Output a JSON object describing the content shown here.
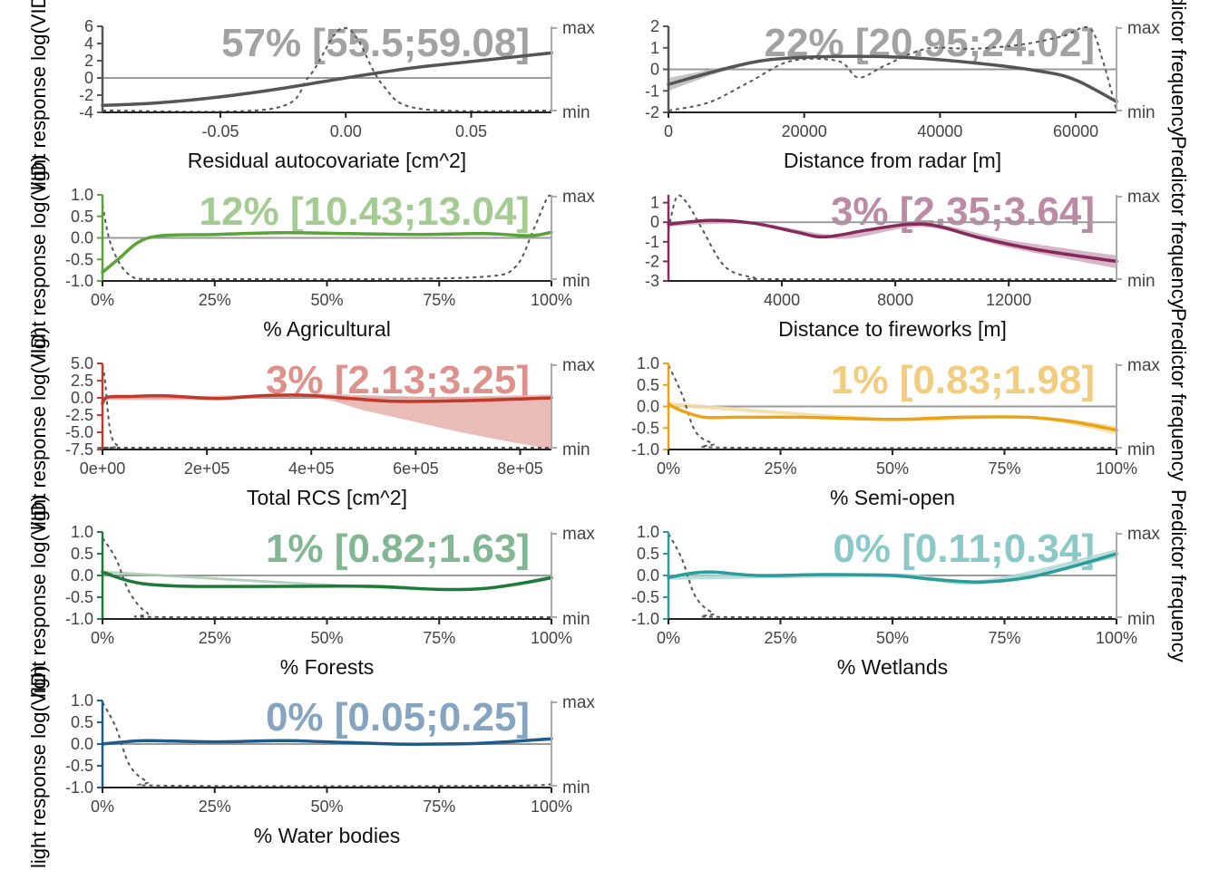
{
  "figure": {
    "left_axis_label": "light response log(VID)",
    "right_axis_label": "Predictor frequency"
  },
  "chart_data": [
    {
      "type": "line",
      "xlabel": "Residual autocovariate [cm^2]",
      "annotation": "57% [55.5;59.08]",
      "color": "#555555",
      "xlim": [
        -0.097,
        0.082
      ],
      "ylim": [
        -4,
        6
      ],
      "x_ticks": [
        -0.05,
        0.0,
        0.05
      ],
      "x_tick_labels": [
        "-0.05",
        "0.00",
        "0.05"
      ],
      "y_ticks": [
        -4,
        -2,
        0,
        2,
        4,
        6
      ],
      "y_tick_labels": [
        "-4",
        "-2",
        "0",
        "2",
        "4",
        "6"
      ],
      "freq_labels": [
        "max",
        "min"
      ],
      "series": [
        {
          "x": [
            -0.097,
            -0.075,
            -0.05,
            -0.025,
            0.0,
            0.025,
            0.05,
            0.082
          ],
          "y": [
            -3.2,
            -2.9,
            -2.2,
            -1.2,
            0.0,
            1.1,
            1.9,
            2.9
          ]
        }
      ],
      "band": null,
      "frequency": {
        "x": [
          -0.097,
          -0.03,
          -0.015,
          -0.005,
          0.0,
          0.005,
          0.015,
          0.03,
          0.082
        ],
        "y": [
          0.0,
          0.02,
          0.4,
          0.9,
          1.0,
          0.85,
          0.3,
          0.02,
          0.0
        ]
      }
    },
    {
      "type": "line",
      "xlabel": "Distance from radar [m]",
      "annotation": "22% [20.95;24.02]",
      "color": "#555555",
      "xlim": [
        0,
        66000
      ],
      "ylim": [
        -2,
        2
      ],
      "x_ticks": [
        0,
        20000,
        40000,
        60000
      ],
      "x_tick_labels": [
        "0",
        "20000",
        "40000",
        "60000"
      ],
      "y_ticks": [
        -2,
        -1,
        0,
        1,
        2
      ],
      "y_tick_labels": [
        "-2",
        "-1",
        "0",
        "1",
        "2"
      ],
      "freq_labels": [
        "max",
        "min"
      ],
      "series": [
        {
          "x": [
            0,
            8000,
            15000,
            25000,
            35000,
            45000,
            55000,
            60000,
            66000
          ],
          "y": [
            -0.7,
            0.0,
            0.45,
            0.6,
            0.55,
            0.3,
            -0.1,
            -0.5,
            -1.5
          ]
        }
      ],
      "band": {
        "x": [
          0,
          8000,
          15000,
          25000,
          35000,
          45000,
          55000,
          60000,
          66000
        ],
        "lower": [
          -1.0,
          -0.1,
          0.4,
          0.55,
          0.5,
          0.25,
          -0.15,
          -0.55,
          -1.55
        ],
        "upper": [
          -0.4,
          0.1,
          0.5,
          0.65,
          0.6,
          0.35,
          -0.05,
          -0.45,
          -1.45
        ]
      },
      "frequency": {
        "x": [
          0,
          6000,
          12000,
          18000,
          25000,
          28000,
          32000,
          38000,
          45000,
          52000,
          58000,
          62000,
          64000,
          66000
        ],
        "y": [
          0.0,
          0.1,
          0.35,
          0.6,
          0.6,
          0.4,
          0.55,
          0.75,
          0.75,
          0.8,
          0.9,
          1.0,
          0.6,
          0.0
        ]
      }
    },
    {
      "type": "line",
      "xlabel": "% Agricultural",
      "annotation": "12% [10.43;13.04]",
      "color": "#5aa339",
      "xlim": [
        0,
        1
      ],
      "ylim": [
        -1.0,
        1.0
      ],
      "x_ticks": [
        0,
        0.25,
        0.5,
        0.75,
        1.0
      ],
      "x_tick_labels": [
        "0%",
        "25%",
        "50%",
        "75%",
        "100%"
      ],
      "y_ticks": [
        -1.0,
        -0.5,
        0.0,
        0.5,
        1.0
      ],
      "y_tick_labels": [
        "-1.0",
        "-0.5",
        "0.0",
        "0.5",
        "1.0"
      ],
      "freq_labels": [
        "max",
        "min"
      ],
      "series": [
        {
          "x": [
            0,
            0.04,
            0.08,
            0.13,
            0.25,
            0.4,
            0.55,
            0.7,
            0.85,
            0.95,
            1.0
          ],
          "y": [
            -0.8,
            -0.45,
            -0.1,
            0.05,
            0.08,
            0.12,
            0.1,
            0.08,
            0.1,
            0.05,
            0.13
          ]
        }
      ],
      "band": null,
      "frequency": {
        "x": [
          0,
          0.02,
          0.06,
          0.12,
          0.3,
          0.6,
          0.85,
          0.92,
          0.96,
          0.99,
          1.0
        ],
        "y": [
          0.9,
          0.4,
          0.05,
          0.0,
          0.0,
          0.0,
          0.03,
          0.15,
          0.6,
          0.98,
          1.0
        ]
      }
    },
    {
      "type": "line",
      "xlabel": "Distance to fireworks [m]",
      "annotation": "3% [2.35;3.64]",
      "color": "#862a5c",
      "xlim": [
        0,
        15800
      ],
      "ylim": [
        -3,
        1.4
      ],
      "x_ticks": [
        4000,
        8000,
        12000
      ],
      "x_tick_labels": [
        "4000",
        "8000",
        "12000"
      ],
      "y_ticks": [
        -3,
        -2,
        -1,
        0,
        1
      ],
      "y_tick_labels": [
        "-3",
        "-2",
        "-1",
        "0",
        "1"
      ],
      "freq_labels": [
        "max",
        "min"
      ],
      "series": [
        {
          "x": [
            0,
            1500,
            3000,
            4500,
            5500,
            7000,
            8500,
            9500,
            11000,
            13000,
            15800
          ],
          "y": [
            -0.1,
            0.1,
            -0.05,
            -0.5,
            -0.75,
            -0.4,
            -0.1,
            -0.2,
            -0.8,
            -1.4,
            -2.0
          ]
        }
      ],
      "band": {
        "x": [
          0,
          3000,
          6000,
          9000,
          12000,
          15800
        ],
        "lower": [
          -0.2,
          -0.1,
          -0.85,
          -0.25,
          -1.3,
          -2.35
        ],
        "upper": [
          0.0,
          0.0,
          -0.65,
          -0.05,
          -0.9,
          -1.7
        ]
      },
      "frequency": {
        "x": [
          0,
          300,
          700,
          1200,
          2000,
          3000,
          4000,
          15800
        ],
        "y": [
          0.6,
          1.0,
          0.9,
          0.6,
          0.15,
          0.02,
          0.0,
          0.0
        ]
      }
    },
    {
      "type": "line",
      "xlabel": "Total RCS [cm^2]",
      "annotation": "3% [2.13;3.25]",
      "color": "#c0392b",
      "xlim": [
        0,
        860000
      ],
      "ylim": [
        -7.5,
        5.0
      ],
      "x_ticks": [
        0,
        200000,
        400000,
        600000,
        800000
      ],
      "x_tick_labels": [
        "0e+00",
        "2e+05",
        "4e+05",
        "6e+05",
        "8e+05"
      ],
      "y_ticks": [
        -7.5,
        -5.0,
        -2.5,
        0.0,
        2.5,
        5.0
      ],
      "y_tick_labels": [
        "-7.5",
        "-5.0",
        "-2.5",
        "0.0",
        "2.5",
        "5.0"
      ],
      "freq_labels": [
        "max",
        "min"
      ],
      "series": [
        {
          "x": [
            0,
            10000,
            50000,
            120000,
            220000,
            300000,
            380000,
            460000,
            560000,
            700000,
            860000
          ],
          "y": [
            -0.8,
            0.1,
            0.2,
            0.3,
            -0.1,
            0.3,
            0.4,
            0.0,
            -0.5,
            -0.4,
            0.0
          ]
        }
      ],
      "band": {
        "x": [
          0,
          200000,
          400000,
          500000,
          600000,
          700000,
          860000
        ],
        "lower": [
          -0.3,
          -0.3,
          0.0,
          -1.8,
          -3.5,
          -5.2,
          -7.5
        ],
        "upper": [
          0.3,
          0.3,
          0.6,
          0.4,
          0.2,
          0.2,
          0.5
        ]
      },
      "frequency": {
        "x": [
          0,
          5000,
          15000,
          30000,
          60000,
          860000
        ],
        "y": [
          1.0,
          0.8,
          0.2,
          0.02,
          0.0,
          0.0
        ]
      }
    },
    {
      "type": "line",
      "xlabel": "% Semi-open",
      "annotation": "1% [0.83;1.98]",
      "color": "#e8a317",
      "xlim": [
        0,
        1
      ],
      "ylim": [
        -1.0,
        1.0
      ],
      "x_ticks": [
        0,
        0.25,
        0.5,
        0.75,
        1.0
      ],
      "x_tick_labels": [
        "0%",
        "25%",
        "50%",
        "75%",
        "100%"
      ],
      "y_ticks": [
        -1.0,
        -0.5,
        0.0,
        0.5,
        1.0
      ],
      "y_tick_labels": [
        "-1.0",
        "-0.5",
        "0.0",
        "0.5",
        "1.0"
      ],
      "freq_labels": [
        "max",
        "min"
      ],
      "series": [
        {
          "x": [
            0,
            0.03,
            0.08,
            0.15,
            0.3,
            0.5,
            0.65,
            0.8,
            0.9,
            1.0
          ],
          "y": [
            0.05,
            -0.1,
            -0.25,
            -0.25,
            -0.25,
            -0.3,
            -0.25,
            -0.25,
            -0.35,
            -0.55
          ]
        }
      ],
      "band": {
        "x": [
          0,
          0.5,
          0.8,
          1.0
        ],
        "lower": [
          0.0,
          -0.33,
          -0.28,
          -0.65
        ],
        "upper": [
          0.1,
          -0.27,
          -0.22,
          -0.45
        ]
      },
      "frequency": {
        "x": [
          0,
          0.03,
          0.06,
          0.1,
          0.15,
          1.0
        ],
        "y": [
          1.0,
          0.65,
          0.2,
          0.05,
          0.0,
          0.0
        ]
      }
    },
    {
      "type": "line",
      "xlabel": "% Forests",
      "annotation": "1% [0.82;1.63]",
      "color": "#1e7a3a",
      "xlim": [
        0,
        1
      ],
      "ylim": [
        -1.0,
        1.0
      ],
      "x_ticks": [
        0,
        0.25,
        0.5,
        0.75,
        1.0
      ],
      "x_tick_labels": [
        "0%",
        "25%",
        "50%",
        "75%",
        "100%"
      ],
      "y_ticks": [
        -1.0,
        -0.5,
        0.0,
        0.5,
        1.0
      ],
      "y_tick_labels": [
        "-1.0",
        "-0.5",
        "0.0",
        "0.5",
        "1.0"
      ],
      "freq_labels": [
        "max",
        "min"
      ],
      "series": [
        {
          "x": [
            0,
            0.05,
            0.1,
            0.2,
            0.4,
            0.6,
            0.75,
            0.85,
            0.95,
            1.0
          ],
          "y": [
            0.08,
            -0.1,
            -0.2,
            -0.25,
            -0.25,
            -0.25,
            -0.32,
            -0.3,
            -0.15,
            -0.05
          ]
        }
      ],
      "band": {
        "x": [
          0,
          0.75,
          1.0
        ],
        "lower": [
          0.05,
          -0.35,
          -0.1
        ],
        "upper": [
          0.11,
          -0.29,
          0.0
        ]
      },
      "frequency": {
        "x": [
          0,
          0.03,
          0.06,
          0.1,
          0.15,
          1.0
        ],
        "y": [
          0.95,
          0.7,
          0.3,
          0.05,
          0.0,
          0.0
        ]
      }
    },
    {
      "type": "line",
      "xlabel": "% Wetlands",
      "annotation": "0% [0.11;0.34]",
      "color": "#2a9d9a",
      "xlim": [
        0,
        1
      ],
      "ylim": [
        -1.0,
        1.0
      ],
      "x_ticks": [
        0,
        0.25,
        0.5,
        0.75,
        1.0
      ],
      "x_tick_labels": [
        "0%",
        "25%",
        "50%",
        "75%",
        "100%"
      ],
      "y_ticks": [
        -1.0,
        -0.5,
        0.0,
        0.5,
        1.0
      ],
      "y_tick_labels": [
        "-1.0",
        "-0.5",
        "0.0",
        "0.5",
        "1.0"
      ],
      "freq_labels": [
        "max",
        "min"
      ],
      "series": [
        {
          "x": [
            0,
            0.05,
            0.1,
            0.2,
            0.35,
            0.5,
            0.6,
            0.7,
            0.8,
            0.9,
            1.0
          ],
          "y": [
            -0.05,
            0.05,
            0.08,
            0.0,
            0.02,
            0.0,
            -0.1,
            -0.15,
            -0.05,
            0.2,
            0.5
          ]
        }
      ],
      "band": {
        "x": [
          0,
          0.5,
          0.7,
          1.0
        ],
        "lower": [
          -0.1,
          -0.05,
          -0.2,
          0.4
        ],
        "upper": [
          0.0,
          0.05,
          -0.1,
          0.6
        ]
      },
      "frequency": {
        "x": [
          0,
          0.03,
          0.06,
          0.1,
          0.15,
          1.0
        ],
        "y": [
          1.0,
          0.7,
          0.25,
          0.05,
          0.0,
          0.0
        ]
      }
    },
    {
      "type": "line",
      "xlabel": "% Water bodies",
      "annotation": "0% [0.05;0.25]",
      "color": "#1f5a8a",
      "xlim": [
        0,
        1
      ],
      "ylim": [
        -1.0,
        1.0
      ],
      "x_ticks": [
        0,
        0.25,
        0.5,
        0.75,
        1.0
      ],
      "x_tick_labels": [
        "0%",
        "25%",
        "50%",
        "75%",
        "100%"
      ],
      "y_ticks": [
        -1.0,
        -0.5,
        0.0,
        0.5,
        1.0
      ],
      "y_tick_labels": [
        "-1.0",
        "-0.5",
        "0.0",
        "0.5",
        "1.0"
      ],
      "freq_labels": [
        "max",
        "min"
      ],
      "series": [
        {
          "x": [
            0,
            0.05,
            0.1,
            0.25,
            0.4,
            0.5,
            0.65,
            0.75,
            0.85,
            1.0
          ],
          "y": [
            0.0,
            0.05,
            0.08,
            0.05,
            0.08,
            0.05,
            0.0,
            0.0,
            0.02,
            0.12
          ]
        }
      ],
      "band": null,
      "frequency": {
        "x": [
          0,
          0.03,
          0.06,
          0.1,
          0.15,
          0.9,
          1.0
        ],
        "y": [
          1.0,
          0.7,
          0.25,
          0.05,
          0.0,
          0.0,
          0.03
        ]
      }
    }
  ]
}
